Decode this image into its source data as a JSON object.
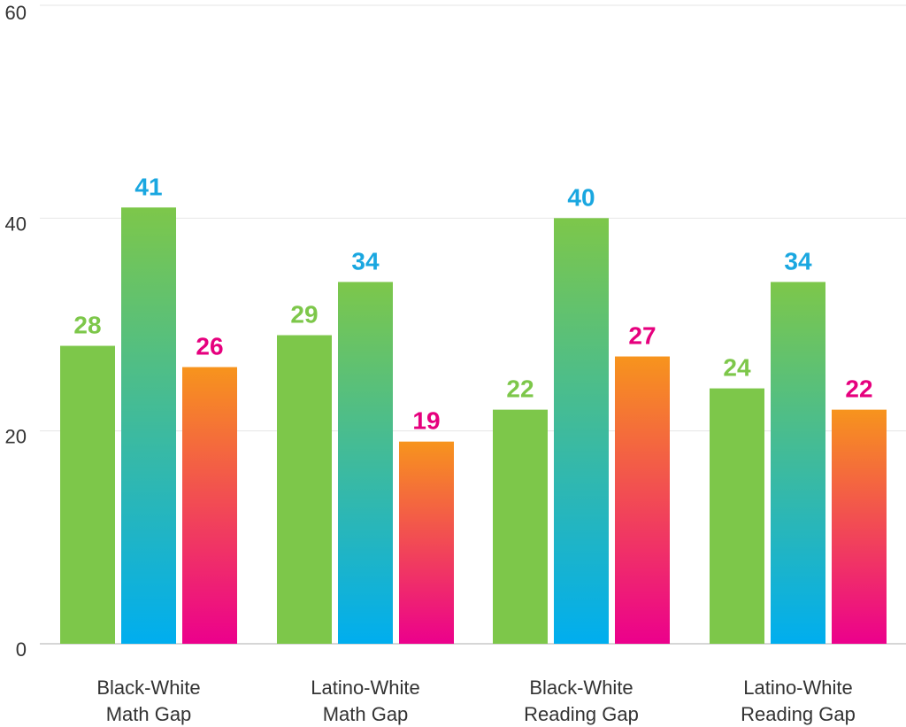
{
  "chart_data": {
    "type": "bar",
    "title": "",
    "xlabel": "",
    "ylabel": "",
    "ylim": [
      0,
      60
    ],
    "yticks": [
      0,
      20,
      40,
      60
    ],
    "grid": true,
    "legend": "none",
    "categories": [
      [
        "Black-White",
        "Math Gap"
      ],
      [
        "Latino-White",
        "Math Gap"
      ],
      [
        "Black-White",
        "Reading Gap"
      ],
      [
        "Latino-White",
        "Reading Gap"
      ]
    ],
    "series": [
      {
        "values": [
          28,
          29,
          22,
          24
        ],
        "label_color": "#7dc74a",
        "gradient": [
          "#7dc74a",
          "#7dc74a"
        ]
      },
      {
        "values": [
          41,
          34,
          40,
          34
        ],
        "label_color": "#1aa7e0",
        "gradient": [
          "#7dc74a",
          "#00aeef"
        ]
      },
      {
        "values": [
          26,
          19,
          27,
          22
        ],
        "label_color": "#e6007e",
        "gradient": [
          "#f7941d",
          "#ec008c"
        ]
      }
    ]
  }
}
